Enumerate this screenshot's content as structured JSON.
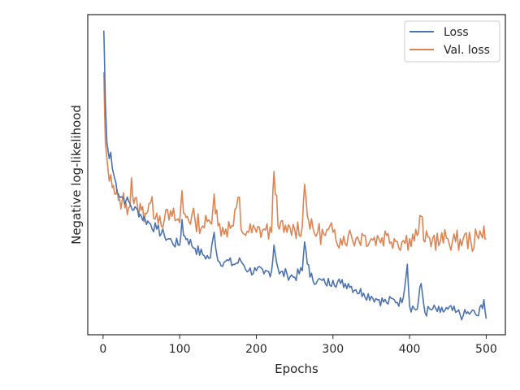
{
  "chart_data": {
    "type": "line",
    "title": "",
    "xlabel": "Epochs",
    "ylabel": "Negative log-likelihood",
    "xlim": [
      -20,
      525
    ],
    "ylim": [
      0,
      1
    ],
    "x_ticks": [
      "0",
      "100",
      "200",
      "300",
      "400",
      "500"
    ],
    "y_ticks_shown": false,
    "legend": "top-right",
    "grid": false,
    "colors": {
      "Loss": "#4c72b0",
      "Val. loss": "#dd8452",
      "axes": "#262626"
    },
    "series": [
      {
        "name": "Loss",
        "x": [
          1,
          2,
          3,
          5,
          8,
          10,
          12,
          15,
          20,
          25,
          30,
          35,
          40,
          45,
          50,
          55,
          60,
          70,
          80,
          90,
          100,
          103,
          105,
          110,
          120,
          130,
          140,
          145,
          150,
          160,
          170,
          180,
          190,
          200,
          210,
          220,
          223,
          230,
          240,
          250,
          260,
          263,
          270,
          280,
          290,
          300,
          310,
          320,
          330,
          340,
          350,
          360,
          370,
          380,
          390,
          397,
          400,
          410,
          415,
          420,
          430,
          440,
          450,
          460,
          470,
          480,
          490,
          497,
          500
        ],
        "y": [
          0.95,
          0.85,
          0.72,
          0.6,
          0.55,
          0.57,
          0.52,
          0.49,
          0.44,
          0.43,
          0.42,
          0.41,
          0.39,
          0.39,
          0.37,
          0.36,
          0.35,
          0.33,
          0.31,
          0.29,
          0.28,
          0.36,
          0.31,
          0.3,
          0.27,
          0.25,
          0.24,
          0.32,
          0.23,
          0.23,
          0.22,
          0.23,
          0.2,
          0.2,
          0.19,
          0.2,
          0.28,
          0.19,
          0.19,
          0.18,
          0.2,
          0.29,
          0.18,
          0.17,
          0.16,
          0.17,
          0.16,
          0.16,
          0.14,
          0.13,
          0.12,
          0.11,
          0.1,
          0.11,
          0.1,
          0.22,
          0.09,
          0.08,
          0.16,
          0.07,
          0.08,
          0.07,
          0.08,
          0.07,
          0.06,
          0.07,
          0.06,
          0.11,
          0.05
        ]
      },
      {
        "name": "Val. loss",
        "x": [
          1,
          2,
          3,
          5,
          8,
          10,
          12,
          15,
          20,
          25,
          30,
          35,
          37,
          40,
          45,
          50,
          55,
          60,
          70,
          80,
          90,
          100,
          103,
          105,
          110,
          120,
          130,
          140,
          145,
          150,
          160,
          170,
          178,
          180,
          190,
          200,
          210,
          220,
          223,
          230,
          240,
          250,
          260,
          263,
          270,
          280,
          290,
          300,
          310,
          320,
          330,
          340,
          350,
          360,
          370,
          380,
          390,
          400,
          410,
          415,
          420,
          430,
          440,
          450,
          460,
          470,
          480,
          490,
          497,
          500
        ],
        "y": [
          0.82,
          0.7,
          0.6,
          0.55,
          0.48,
          0.5,
          0.46,
          0.44,
          0.42,
          0.42,
          0.41,
          0.4,
          0.49,
          0.41,
          0.4,
          0.39,
          0.38,
          0.41,
          0.38,
          0.36,
          0.37,
          0.35,
          0.45,
          0.38,
          0.37,
          0.36,
          0.34,
          0.35,
          0.44,
          0.34,
          0.33,
          0.34,
          0.43,
          0.33,
          0.32,
          0.32,
          0.33,
          0.32,
          0.51,
          0.33,
          0.32,
          0.33,
          0.34,
          0.47,
          0.33,
          0.32,
          0.31,
          0.32,
          0.3,
          0.31,
          0.3,
          0.31,
          0.3,
          0.3,
          0.31,
          0.3,
          0.29,
          0.3,
          0.31,
          0.37,
          0.29,
          0.3,
          0.29,
          0.3,
          0.29,
          0.3,
          0.29,
          0.3,
          0.34,
          0.3
        ]
      }
    ]
  }
}
